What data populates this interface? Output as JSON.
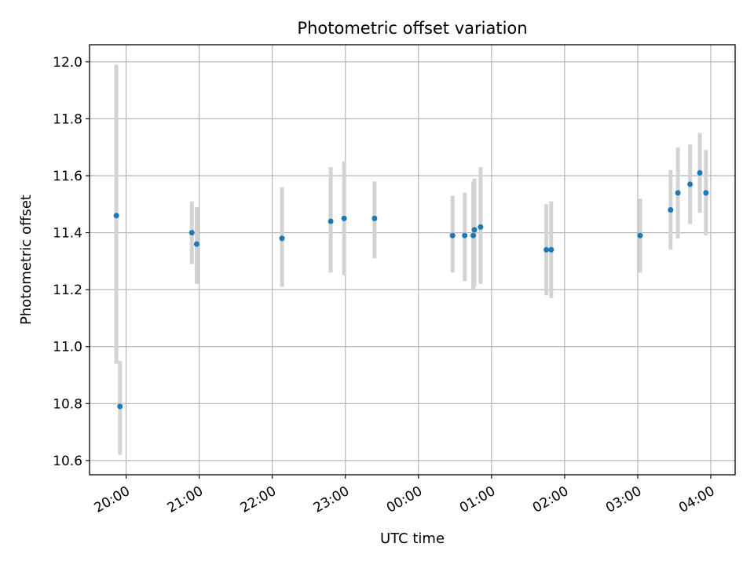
{
  "chart_data": {
    "type": "scatter",
    "title": "Photometric offset variation",
    "xlabel": "UTC time",
    "ylabel": "Photometric offset",
    "xlim": [
      "2023-01-01T19:30",
      "2023-01-02T04:20"
    ],
    "ylim": [
      10.55,
      12.06
    ],
    "x_ticks": [
      {
        "value": "2023-01-01T20:00",
        "label": "20:00"
      },
      {
        "value": "2023-01-01T21:00",
        "label": "21:00"
      },
      {
        "value": "2023-01-01T22:00",
        "label": "22:00"
      },
      {
        "value": "2023-01-01T23:00",
        "label": "23:00"
      },
      {
        "value": "2023-01-02T00:00",
        "label": "00:00"
      },
      {
        "value": "2023-01-02T01:00",
        "label": "01:00"
      },
      {
        "value": "2023-01-02T02:00",
        "label": "02:00"
      },
      {
        "value": "2023-01-02T03:00",
        "label": "03:00"
      },
      {
        "value": "2023-01-02T04:00",
        "label": "04:00"
      }
    ],
    "y_ticks": [
      {
        "value": 10.6,
        "label": "10.6"
      },
      {
        "value": 10.8,
        "label": "10.8"
      },
      {
        "value": 11.0,
        "label": "11.0"
      },
      {
        "value": 11.2,
        "label": "11.2"
      },
      {
        "value": 11.4,
        "label": "11.4"
      },
      {
        "value": 11.6,
        "label": "11.6"
      },
      {
        "value": 11.8,
        "label": "11.8"
      },
      {
        "value": 12.0,
        "label": "12.0"
      }
    ],
    "grid": true,
    "point_color": "#1f77b4",
    "errorbar_color": "#d3d3d3",
    "points": [
      {
        "x": "2023-01-01T19:52",
        "y": 11.46,
        "ylow": 10.94,
        "yhigh": 11.99
      },
      {
        "x": "2023-01-01T19:55",
        "y": 10.79,
        "ylow": 10.62,
        "yhigh": 10.95
      },
      {
        "x": "2023-01-01T20:54",
        "y": 11.4,
        "ylow": 11.29,
        "yhigh": 11.51
      },
      {
        "x": "2023-01-01T20:58",
        "y": 11.36,
        "ylow": 11.22,
        "yhigh": 11.49
      },
      {
        "x": "2023-01-01T22:08",
        "y": 11.38,
        "ylow": 11.21,
        "yhigh": 11.56
      },
      {
        "x": "2023-01-01T22:48",
        "y": 11.44,
        "ylow": 11.26,
        "yhigh": 11.63
      },
      {
        "x": "2023-01-01T22:59",
        "y": 11.45,
        "ylow": 11.25,
        "yhigh": 11.65
      },
      {
        "x": "2023-01-01T23:24",
        "y": 11.45,
        "ylow": 11.31,
        "yhigh": 11.58
      },
      {
        "x": "2023-01-02T00:28",
        "y": 11.39,
        "ylow": 11.26,
        "yhigh": 11.53
      },
      {
        "x": "2023-01-02T00:38",
        "y": 11.39,
        "ylow": 11.23,
        "yhigh": 11.54
      },
      {
        "x": "2023-01-02T00:45",
        "y": 11.39,
        "ylow": 11.2,
        "yhigh": 11.58
      },
      {
        "x": "2023-01-02T00:46",
        "y": 11.41,
        "ylow": 11.21,
        "yhigh": 11.59
      },
      {
        "x": "2023-01-02T00:51",
        "y": 11.42,
        "ylow": 11.22,
        "yhigh": 11.63
      },
      {
        "x": "2023-01-02T01:45",
        "y": 11.34,
        "ylow": 11.18,
        "yhigh": 11.5
      },
      {
        "x": "2023-01-02T01:49",
        "y": 11.34,
        "ylow": 11.17,
        "yhigh": 11.51
      },
      {
        "x": "2023-01-02T03:02",
        "y": 11.39,
        "ylow": 11.26,
        "yhigh": 11.52
      },
      {
        "x": "2023-01-02T03:27",
        "y": 11.48,
        "ylow": 11.34,
        "yhigh": 11.62
      },
      {
        "x": "2023-01-02T03:33",
        "y": 11.54,
        "ylow": 11.38,
        "yhigh": 11.7
      },
      {
        "x": "2023-01-02T03:43",
        "y": 11.57,
        "ylow": 11.43,
        "yhigh": 11.71
      },
      {
        "x": "2023-01-02T03:51",
        "y": 11.61,
        "ylow": 11.47,
        "yhigh": 11.75
      },
      {
        "x": "2023-01-02T03:56",
        "y": 11.54,
        "ylow": 11.39,
        "yhigh": 11.69
      }
    ]
  }
}
